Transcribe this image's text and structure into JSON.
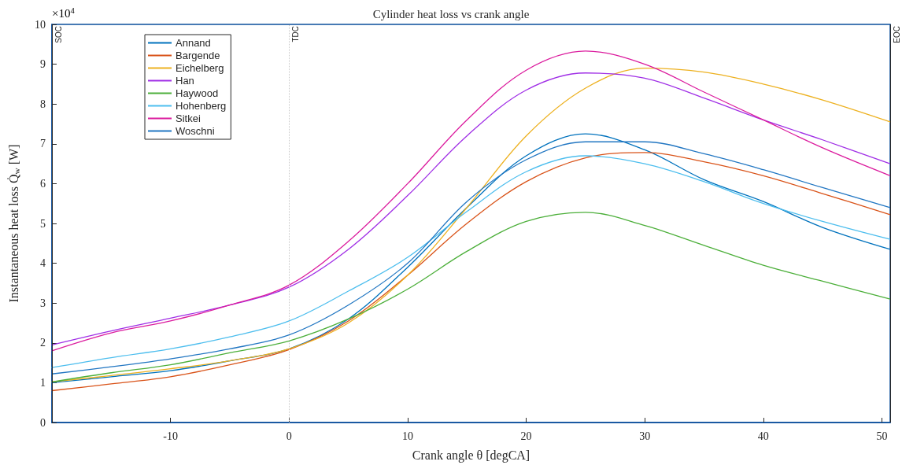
{
  "chart_data": {
    "type": "line",
    "title": "Cylinder heat loss vs crank angle",
    "xlabel": "Crank angle θ [degCA]",
    "ylabel": "Instantaneous heat loss Q̇$_{w}$ [W]",
    "annotations": [
      "×10$^{4}$"
    ],
    "x": [
      -20,
      -15,
      -10,
      -5,
      0,
      5,
      10,
      15,
      20,
      25,
      30,
      35,
      40,
      45,
      50.7
    ],
    "xlim": [
      -20,
      50.7
    ],
    "xticks": [
      -10,
      0,
      10,
      20,
      30,
      40,
      50
    ],
    "ylim": [
      0,
      10
    ],
    "yticks": [
      0,
      1,
      2,
      3,
      4,
      5,
      6,
      7,
      8,
      9,
      10
    ],
    "series": [
      {
        "name": "Annand",
        "color": "#0072bd",
        "values": [
          1.0,
          1.15,
          1.3,
          1.55,
          1.85,
          2.6,
          3.9,
          5.4,
          6.7,
          7.25,
          6.85,
          6.1,
          5.55,
          4.9,
          4.35
        ]
      },
      {
        "name": "Bargende",
        "color": "#d95319",
        "values": [
          0.8,
          0.97,
          1.15,
          1.45,
          1.83,
          2.55,
          3.7,
          5.0,
          6.05,
          6.65,
          6.78,
          6.55,
          6.2,
          5.75,
          5.22
        ]
      },
      {
        "name": "Eichelberg",
        "color": "#edb120",
        "values": [
          1.02,
          1.18,
          1.35,
          1.55,
          1.85,
          2.5,
          3.7,
          5.4,
          7.2,
          8.4,
          8.9,
          8.8,
          8.5,
          8.1,
          7.55
        ]
      },
      {
        "name": "Han",
        "color": "#a02fe6",
        "values": [
          1.95,
          2.3,
          2.62,
          2.95,
          3.4,
          4.35,
          5.7,
          7.2,
          8.35,
          8.78,
          8.65,
          8.15,
          7.6,
          7.1,
          6.5
        ]
      },
      {
        "name": "Haywood",
        "color": "#4caf3a",
        "values": [
          1.02,
          1.25,
          1.45,
          1.75,
          2.05,
          2.6,
          3.35,
          4.3,
          5.05,
          5.28,
          4.95,
          4.45,
          3.95,
          3.55,
          3.1
        ]
      },
      {
        "name": "Hohenberg",
        "color": "#4dbeee",
        "values": [
          1.38,
          1.63,
          1.85,
          2.15,
          2.55,
          3.3,
          4.15,
          5.3,
          6.3,
          6.7,
          6.5,
          6.05,
          5.5,
          5.05,
          4.6
        ]
      },
      {
        "name": "Sitkei",
        "color": "#db1c9e",
        "values": [
          1.8,
          2.25,
          2.55,
          2.95,
          3.45,
          4.55,
          6.0,
          7.6,
          8.85,
          9.33,
          9.0,
          8.3,
          7.6,
          6.9,
          6.2
        ]
      },
      {
        "name": "Woschni",
        "color": "#2176c2",
        "values": [
          1.22,
          1.4,
          1.6,
          1.85,
          2.2,
          2.95,
          4.0,
          5.55,
          6.6,
          7.05,
          7.05,
          6.75,
          6.35,
          5.9,
          5.4
        ]
      }
    ],
    "ref_lines": [
      {
        "axis": "x",
        "value": -20,
        "label": "SOC",
        "color": "#262626"
      },
      {
        "axis": "x",
        "value": 0,
        "label": "TDC",
        "color": "#c8c8c8",
        "line_style": "dotted"
      },
      {
        "axis": "x",
        "value": 50.7,
        "label": "EOC",
        "color": "#262626"
      }
    ],
    "legend": "top left",
    "grid": false,
    "marker": "none",
    "line_style": "solid"
  }
}
